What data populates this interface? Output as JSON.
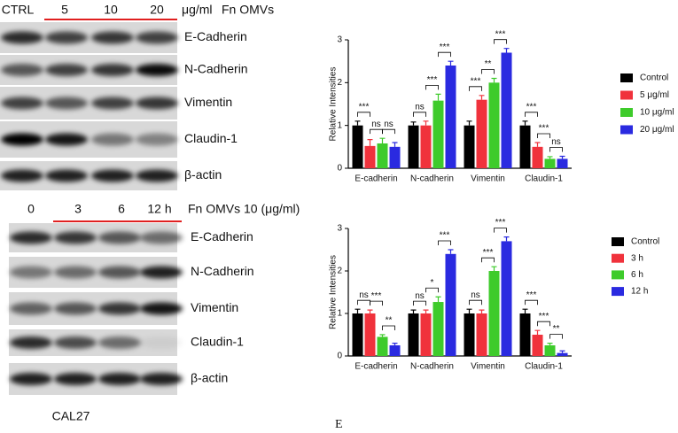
{
  "blots": [
    {
      "header": [
        "CTRL",
        "5",
        "10",
        "20"
      ],
      "unit": "μg/ml",
      "treatment": "Fn OMVs",
      "labels": [
        "E-Cadherin",
        "N-Cadherin",
        "Vimentin",
        "Claudin-1",
        "β-actin"
      ]
    },
    {
      "header": [
        "0",
        "3",
        "6",
        "12 h"
      ],
      "treatment": "Fn OMVs 10 (μg/ml)",
      "labels": [
        "E-Cadherin",
        "N-Cadherin",
        "Vimentin",
        "Claudin-1",
        "β-actin"
      ]
    }
  ],
  "cell_line": "CAL27",
  "panel_label": "E",
  "chart_data": [
    {
      "type": "bar",
      "y_label": "Relative Intensities",
      "categories": [
        "E-cadherin",
        "N-cadherin",
        "Vimentin",
        "Claudin-1"
      ],
      "series": [
        {
          "name": "Control",
          "color": "#000000",
          "values": [
            1,
            1,
            1,
            1
          ],
          "errors": [
            0.1,
            0.08,
            0.1,
            0.1
          ]
        },
        {
          "name": "5 μg/ml",
          "color": "#f0323c",
          "values": [
            0.52,
            1.0,
            1.6,
            0.5
          ],
          "errors": [
            0.15,
            0.1,
            0.1,
            0.1
          ]
        },
        {
          "name": "10 μg/ml",
          "color": "#3ecb2b",
          "values": [
            0.58,
            1.58,
            2.0,
            0.22
          ],
          "errors": [
            0.12,
            0.15,
            0.1,
            0.05
          ]
        },
        {
          "name": "20 μg/ml",
          "color": "#2a2ae0",
          "values": [
            0.5,
            2.4,
            2.7,
            0.22
          ],
          "errors": [
            0.1,
            0.1,
            0.1,
            0.06
          ]
        }
      ],
      "annotations": [
        [
          "***",
          "ns",
          "ns"
        ],
        [
          "ns",
          "***",
          "***"
        ],
        [
          "***",
          "**",
          "***"
        ],
        [
          "***",
          "***",
          "ns"
        ]
      ],
      "ylim": [
        0,
        3
      ],
      "yticks": [
        0,
        1,
        2,
        3
      ]
    },
    {
      "type": "bar",
      "y_label": "Relative Intensities",
      "categories": [
        "E-cadherin",
        "N-cadherin",
        "Vimentin",
        "Claudin-1"
      ],
      "series": [
        {
          "name": "Control",
          "color": "#000000",
          "values": [
            1,
            1,
            1,
            1
          ],
          "errors": [
            0.1,
            0.08,
            0.1,
            0.1
          ]
        },
        {
          "name": "3 h",
          "color": "#f0323c",
          "values": [
            1.0,
            1.0,
            1.0,
            0.5
          ],
          "errors": [
            0.08,
            0.08,
            0.08,
            0.1
          ]
        },
        {
          "name": "6 h",
          "color": "#3ecb2b",
          "values": [
            0.45,
            1.27,
            2.0,
            0.25
          ],
          "errors": [
            0.05,
            0.12,
            0.1,
            0.05
          ]
        },
        {
          "name": "12 h",
          "color": "#2a2ae0",
          "values": [
            0.25,
            2.4,
            2.7,
            0.07
          ],
          "errors": [
            0.05,
            0.1,
            0.1,
            0.05
          ]
        }
      ],
      "annotations": [
        [
          "ns",
          "***",
          "**"
        ],
        [
          "ns",
          "*",
          "***"
        ],
        [
          "ns",
          "***",
          "***"
        ],
        [
          "***",
          "***",
          "**"
        ]
      ],
      "ylim": [
        0,
        3
      ],
      "yticks": [
        0,
        1,
        2,
        3
      ]
    }
  ]
}
